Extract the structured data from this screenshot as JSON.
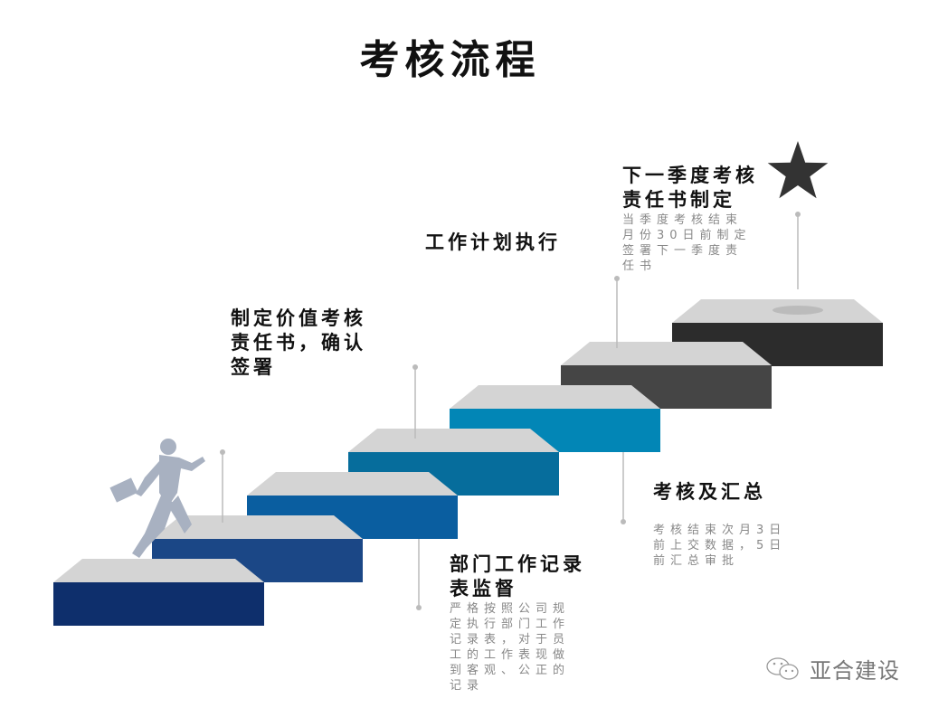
{
  "title": "考核流程",
  "colors": {
    "steps": [
      "#0e2f6c",
      "#1b4786",
      "#0a5ea0",
      "#066d9c",
      "#0286b6",
      "#454545",
      "#2c2c2c"
    ],
    "step_top": "#d4d4d4",
    "line": "#bbbbbb",
    "runner": "#a8b1c1",
    "star": "#333333"
  },
  "steps": [
    {
      "heading": "制定价值考核\n责任书，确认\n签署"
    },
    {
      "heading": "部门工作记录\n表监督",
      "description": "严格按照公司规\n定执行部门工作\n记录表，对于员\n工的工作表现做\n到客观、公正的\n记录"
    },
    {
      "heading": "工作计划执行"
    },
    {
      "heading": "考核及汇总",
      "description": "考核结束次月3日\n前上交数据，5日\n前汇总审批"
    },
    {
      "heading": "下一季度考核\n责任书制定",
      "description": "当季度考核结束\n月份30日前制定\n签署下一季度责\n任书"
    }
  ],
  "icons": {
    "runner": "businessman-running-icon",
    "goal": "star-icon",
    "brand": "wechat-icon"
  },
  "brand": "亚合建设"
}
